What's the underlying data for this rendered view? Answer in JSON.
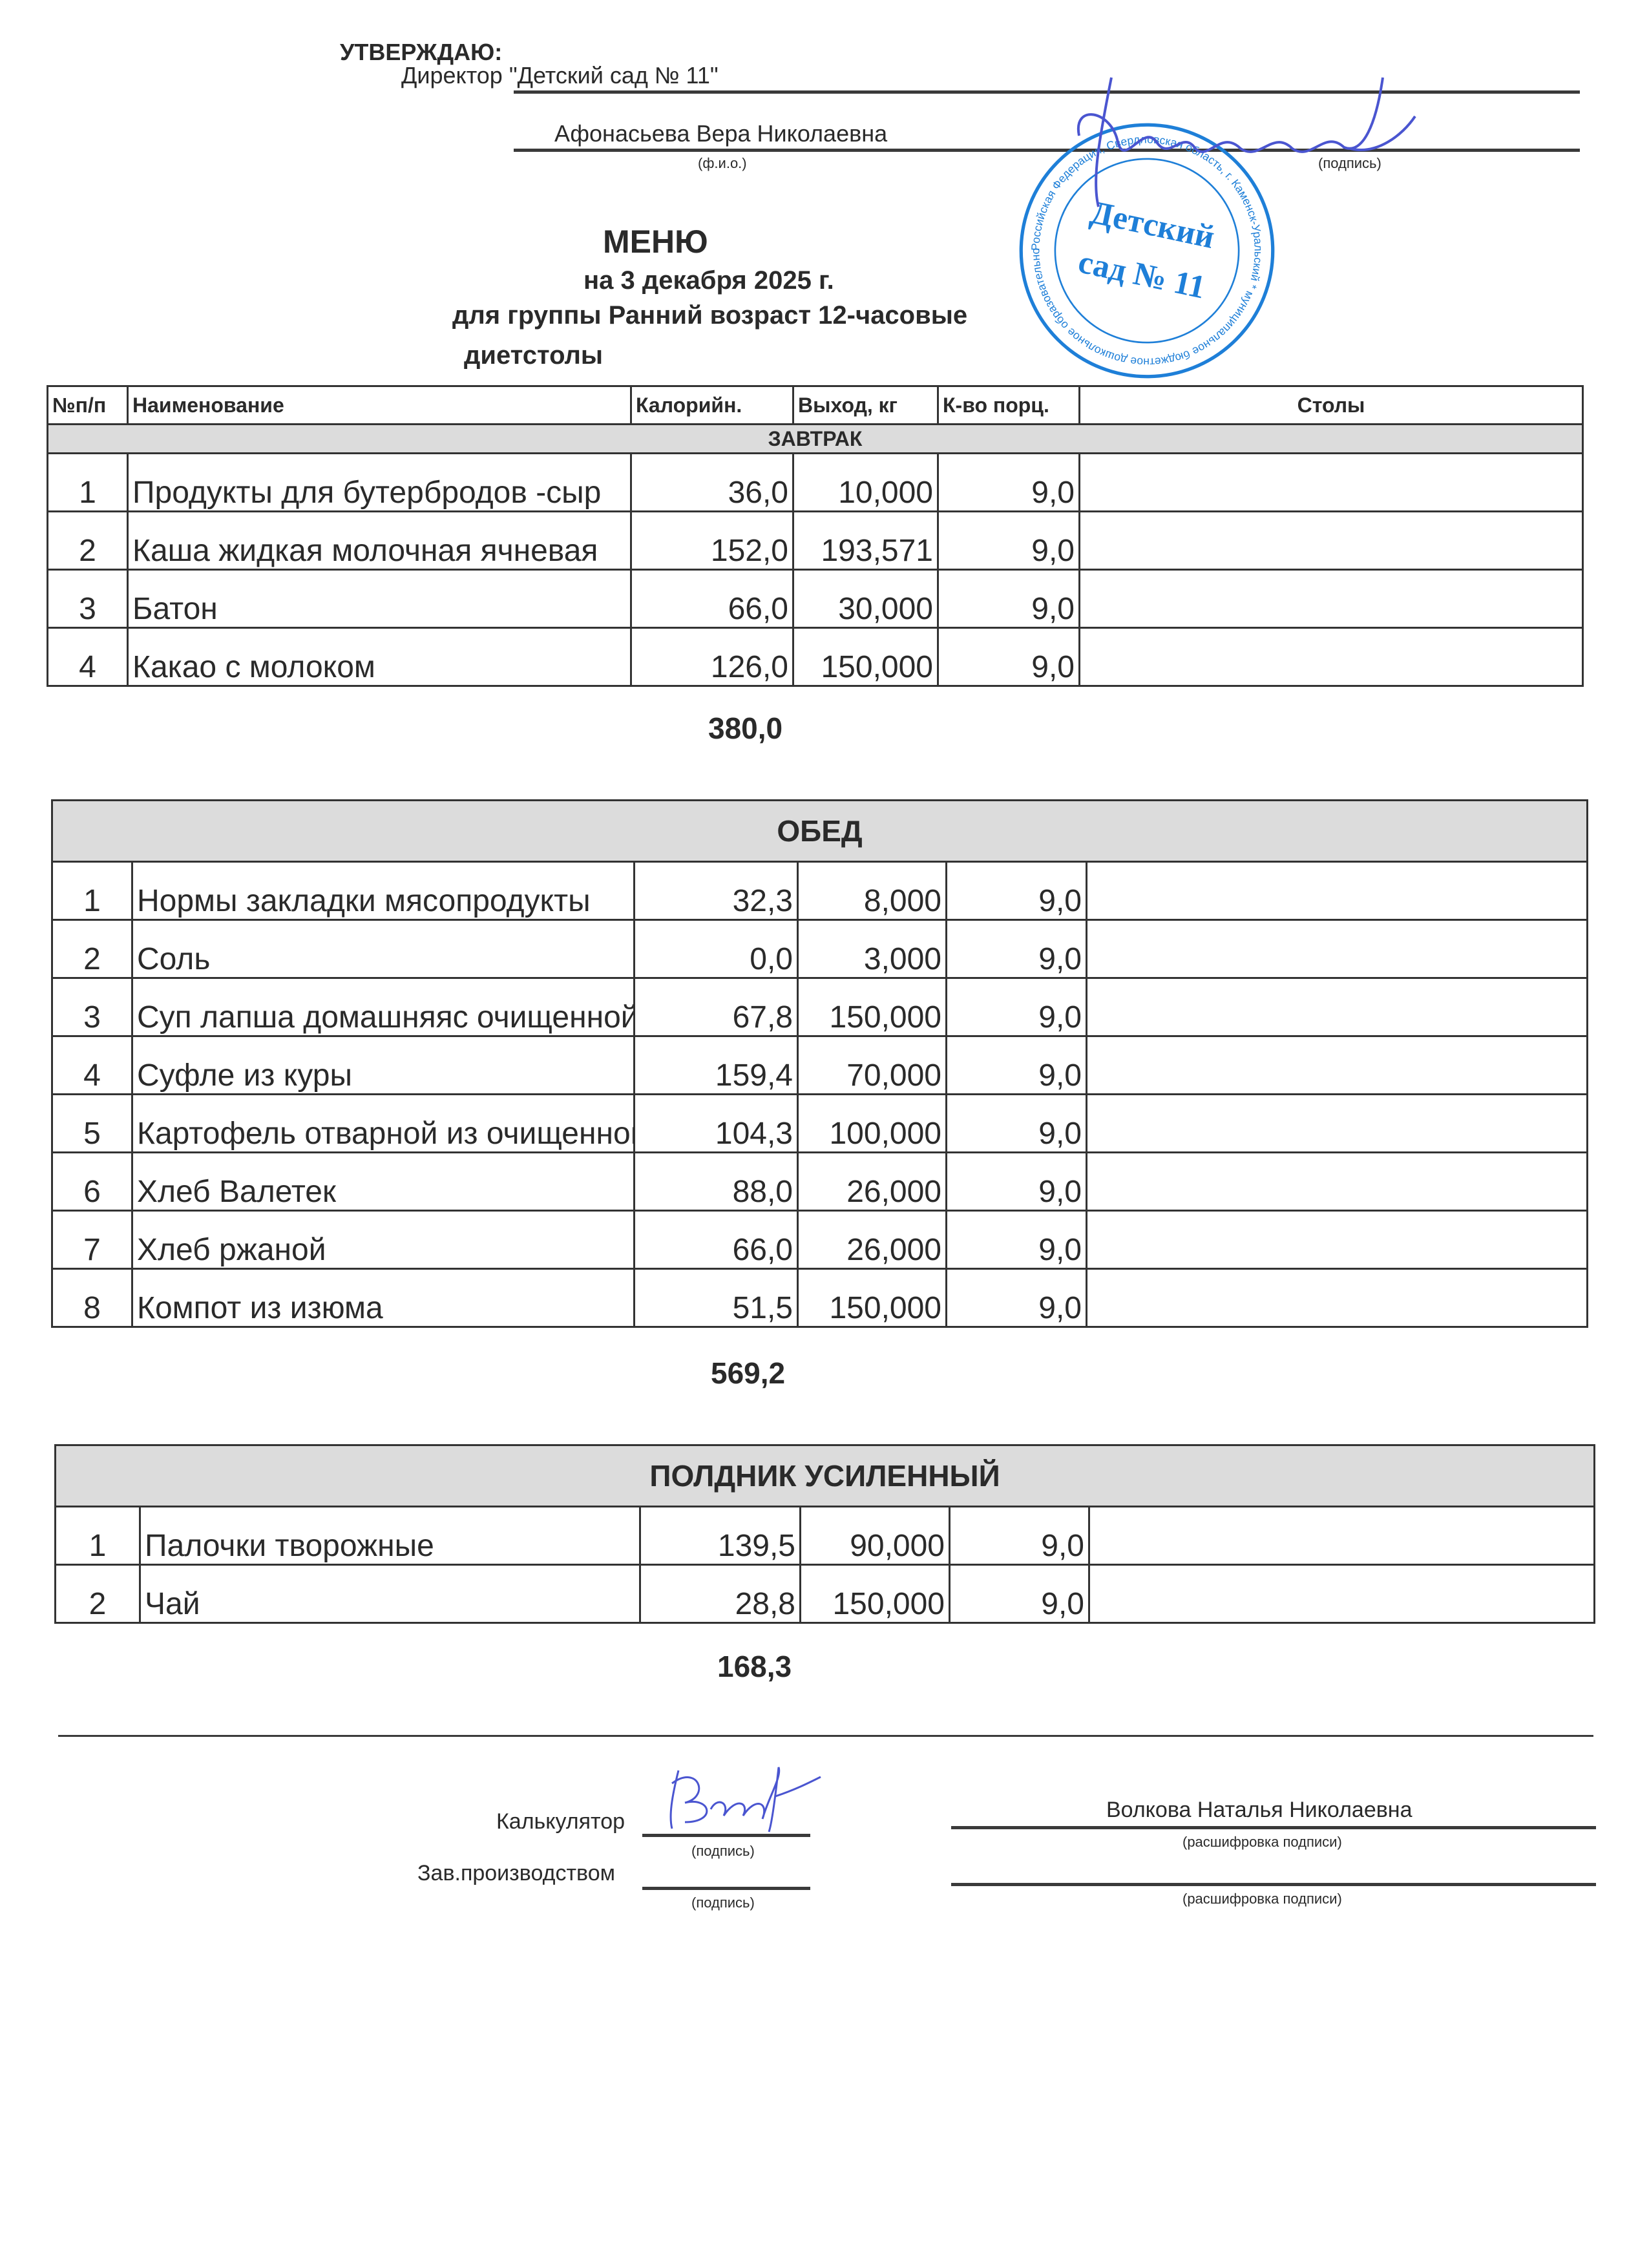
{
  "header": {
    "approve": "УТВЕРЖДАЮ:",
    "director": "Директор \"Детский сад № 11\"",
    "director_name": "Афонасьева Вера Николаевна",
    "fio_caption": "(ф.и.о.)",
    "signature_caption": "(подпись)",
    "stamp_text": "Детский сад № 11",
    "stamp_ring": "Российская Федерация, Свердловская область, г. Каменск-Уральский * муниципальное бюджетное дошкольное образовательное учреждение «Детский сад № 11» * ОГРН 1026600933692 *"
  },
  "title": {
    "menu": "МЕНЮ",
    "date": "на  3 декабря 2025 г.",
    "group": "для группы  Ранний возраст 12-часовые",
    "group2": "диетстолы"
  },
  "columns": [
    "№п/п",
    "Наименование",
    "Калорийн.",
    "Выход, кг",
    "К-во порц.",
    "Столы"
  ],
  "sections": [
    {
      "name": "ЗАВТРАК",
      "total": "380,0",
      "rows": [
        [
          "1",
          "Продукты для бутербродов -сыр",
          "36,0",
          "10,000",
          "9,0",
          ""
        ],
        [
          "2",
          "Каша   жидкая   молочная ячневая",
          "152,0",
          "193,571",
          "9,0",
          ""
        ],
        [
          "3",
          "Батон",
          "66,0",
          "30,000",
          "9,0",
          ""
        ],
        [
          "4",
          "Какао  с  молоком",
          "126,0",
          "150,000",
          "9,0",
          ""
        ]
      ]
    },
    {
      "name": "ОБЕД",
      "total": "569,2",
      "rows": [
        [
          "1",
          "Нормы закладки мясопродукты",
          "32,3",
          "8,000",
          "9,0",
          ""
        ],
        [
          "2",
          "Соль",
          "0,0",
          "3,000",
          "9,0",
          ""
        ],
        [
          "3",
          "Суп лапша домашняяс очищенной",
          "67,8",
          "150,000",
          "9,0",
          ""
        ],
        [
          "4",
          "Суфле из куры",
          "159,4",
          "70,000",
          "9,0",
          ""
        ],
        [
          "5",
          "Картофель отварной из очищенного",
          "104,3",
          "100,000",
          "9,0",
          ""
        ],
        [
          "6",
          "Хлеб Валетек",
          "88,0",
          "26,000",
          "9,0",
          ""
        ],
        [
          "7",
          "Хлеб ржаной",
          "66,0",
          "26,000",
          "9,0",
          ""
        ],
        [
          "8",
          "Компот  из  изюма",
          "51,5",
          "150,000",
          "9,0",
          ""
        ]
      ]
    },
    {
      "name": "ПОЛДНИК УСИЛЕННЫЙ",
      "total": "168,3",
      "rows": [
        [
          "1",
          "Палочки творожные",
          "139,5",
          "90,000",
          "9,0",
          ""
        ],
        [
          "2",
          "Чай",
          "28,8",
          "150,000",
          "9,0",
          ""
        ]
      ]
    }
  ],
  "footer": {
    "calculator": "Калькулятор",
    "calculator_name": "Волкова Наталья Николаевна",
    "production": "Зав.производством",
    "signature_caption": "(подпись)",
    "decode_caption": "(расшифровка подписи)"
  },
  "colors": {
    "stamp": "#1e7fd8",
    "signature": "#4a55d0",
    "section_fill": "#dcdcdc"
  }
}
